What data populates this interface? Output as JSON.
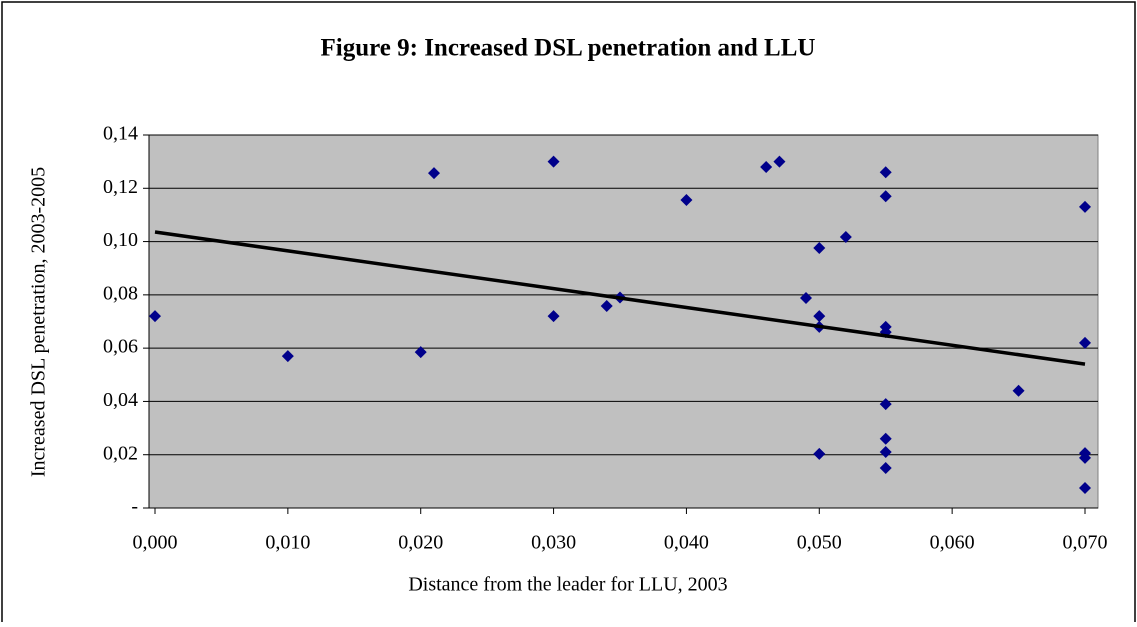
{
  "chart_data": {
    "type": "scatter",
    "title": "Figure 9: Increased DSL penetration and LLU",
    "x_label": "Distance from the leader for LLU, 2003",
    "y_label": "Increased DSL penetration, 2003-2005",
    "xlim": [
      0,
      0.07
    ],
    "ylim": [
      0,
      0.14
    ],
    "xticks": [
      {
        "value": 0,
        "label": "0,000"
      },
      {
        "value": 0.01,
        "label": "0,010"
      },
      {
        "value": 0.02,
        "label": "0,020"
      },
      {
        "value": 0.03,
        "label": "0,030"
      },
      {
        "value": 0.04,
        "label": "0,040"
      },
      {
        "value": 0.05,
        "label": "0,050"
      },
      {
        "value": 0.06,
        "label": "0,060"
      },
      {
        "value": 0.07,
        "label": "0,070"
      }
    ],
    "yticks": [
      {
        "value": 0,
        "label": "-"
      },
      {
        "value": 0.02,
        "label": "0,02"
      },
      {
        "value": 0.04,
        "label": "0,04"
      },
      {
        "value": 0.06,
        "label": "0,06"
      },
      {
        "value": 0.08,
        "label": "0,08"
      },
      {
        "value": 0.1,
        "label": "0,10"
      },
      {
        "value": 0.12,
        "label": "0,12"
      },
      {
        "value": 0.14,
        "label": "0,14"
      }
    ],
    "grid": true,
    "series": [
      {
        "color": "#00008b",
        "x": [
          0,
          0.01,
          0.02,
          0.021,
          0.03,
          0.03,
          0.034,
          0.035,
          0.04,
          0.046,
          0.047,
          0.049,
          0.05,
          0.05,
          0.05,
          0.05,
          0.052,
          0.055,
          0.055,
          0.055,
          0.055,
          0.055,
          0.055,
          0.055,
          0.055,
          0.065,
          0.07,
          0.07,
          0.07,
          0.07,
          0.07
        ],
        "y": [
          0.072,
          0.057,
          0.0585,
          0.1257,
          0.13,
          0.072,
          0.0758,
          0.079,
          0.1156,
          0.128,
          0.13,
          0.0788,
          0.0976,
          0.072,
          0.068,
          0.0203,
          0.1017,
          0.126,
          0.117,
          0.068,
          0.066,
          0.039,
          0.026,
          0.021,
          0.015,
          0.044,
          0.113,
          0.062,
          0.0206,
          0.0188,
          0.0075
        ]
      }
    ],
    "trendline": {
      "color": "#000000",
      "x": [
        0,
        0.07
      ],
      "y": [
        0.1036,
        0.054
      ]
    }
  }
}
